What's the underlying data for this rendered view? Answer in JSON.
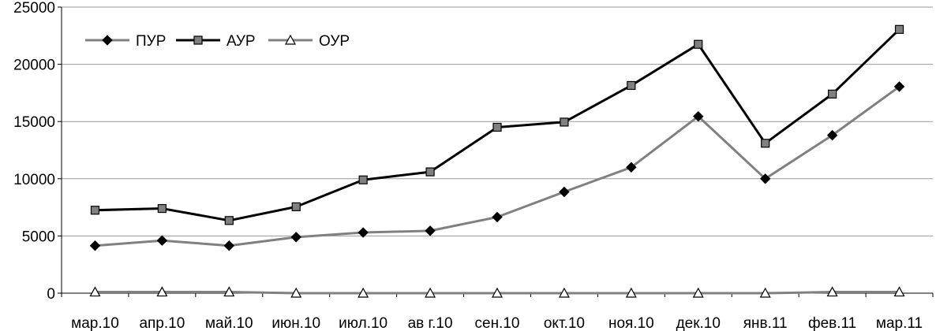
{
  "chart_data": {
    "type": "line",
    "title": "",
    "xlabel": "",
    "ylabel": "",
    "categories": [
      "мар.10",
      "апр.10",
      "май.10",
      "июн.10",
      "июл.10",
      "ав г.10",
      "сен.10",
      "окт.10",
      "ноя.10",
      "дек.10",
      "янв.11",
      "фев.11",
      "мар.11"
    ],
    "ylim": [
      0,
      25000
    ],
    "yticks": [
      "0",
      "5000",
      "10000",
      "15000",
      "20000",
      "25000"
    ],
    "grid": true,
    "legend": "top-left",
    "series": [
      {
        "name": "ПУР",
        "color": "#808080",
        "marker": "diamond",
        "values": [
          4150,
          4600,
          4150,
          4900,
          5300,
          5450,
          6650,
          8850,
          11000,
          15450,
          10000,
          13800,
          18050
        ]
      },
      {
        "name": "АУР",
        "color": "#000000",
        "marker": "square",
        "values": [
          7250,
          7400,
          6350,
          7550,
          9900,
          10600,
          14500,
          14950,
          18150,
          21750,
          13100,
          17400,
          23050
        ]
      },
      {
        "name": "ОУР",
        "color": "#808080",
        "marker": "triangle",
        "values": [
          100,
          100,
          100,
          0,
          0,
          0,
          0,
          0,
          0,
          0,
          0,
          100,
          100
        ]
      }
    ]
  }
}
